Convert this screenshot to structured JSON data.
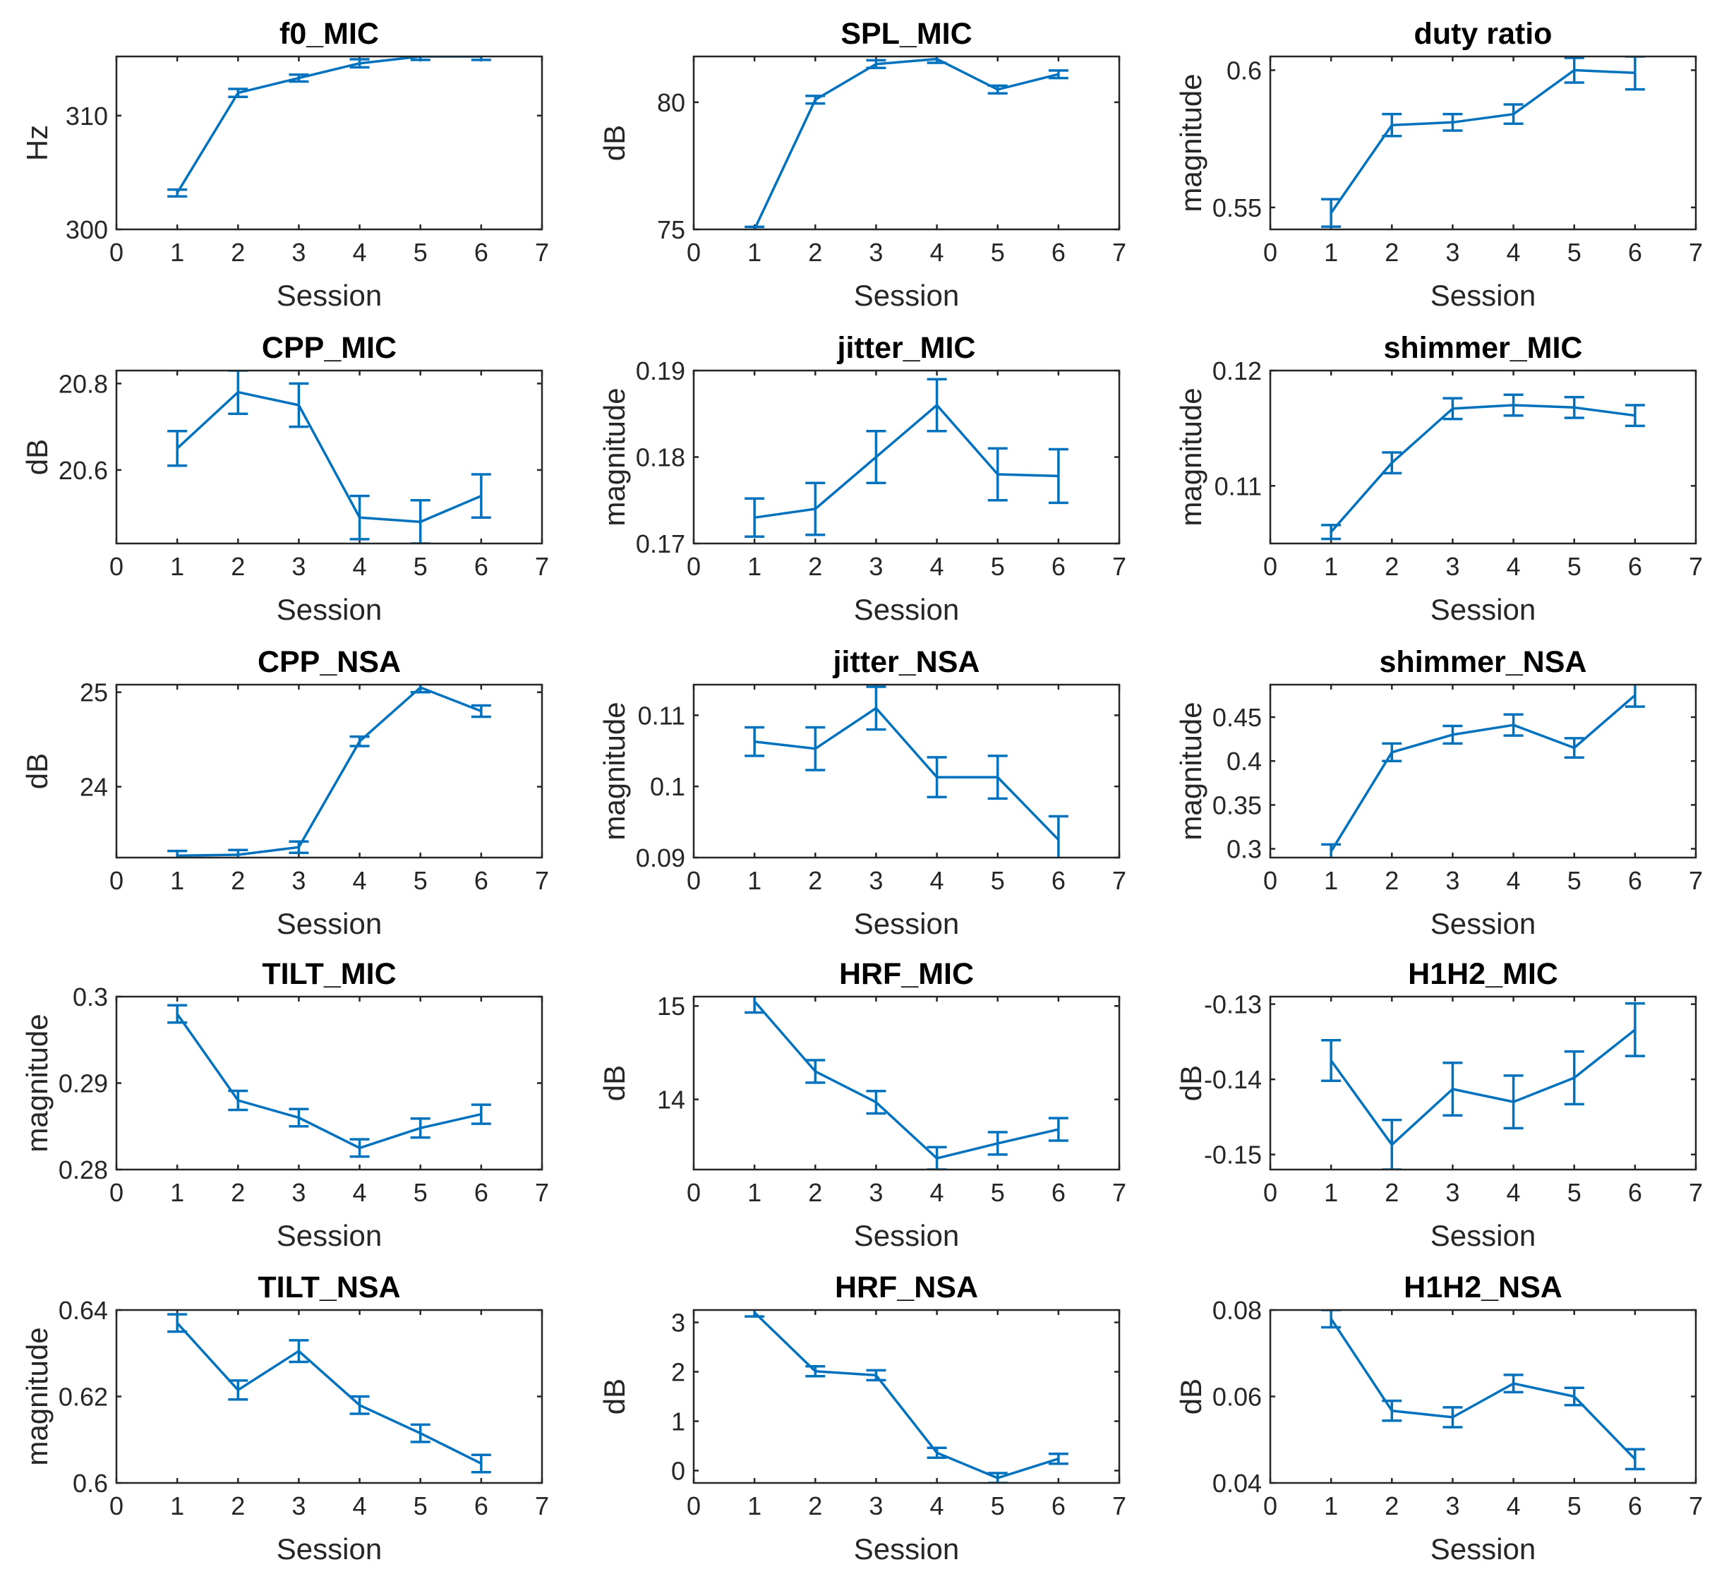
{
  "chart_data": [
    {
      "type": "line",
      "title": "f0_MIC",
      "xlabel": "Session",
      "ylabel": "Hz",
      "xlim": [
        0,
        7
      ],
      "xticks": [
        0,
        1,
        2,
        3,
        4,
        5,
        6,
        7
      ],
      "ylim": [
        300,
        315.2
      ],
      "yticks": [
        300,
        310
      ],
      "x": [
        1,
        2,
        3,
        4,
        5,
        6
      ],
      "values": [
        303.2,
        312,
        313.3,
        314.6,
        315.2,
        315.2
      ],
      "err": [
        0.3,
        0.35,
        0.3,
        0.35,
        0.3,
        0.3
      ],
      "color": "#0072BD"
    },
    {
      "type": "line",
      "title": "SPL_MIC",
      "xlabel": "Session",
      "ylabel": "dB",
      "xlim": [
        0,
        7
      ],
      "xticks": [
        0,
        1,
        2,
        3,
        4,
        5,
        6,
        7
      ],
      "ylim": [
        75,
        81.8
      ],
      "yticks": [
        75,
        80
      ],
      "x": [
        1,
        2,
        3,
        4,
        5,
        6
      ],
      "values": [
        75,
        80.1,
        81.5,
        81.7,
        80.5,
        81.1
      ],
      "err": [
        0.1,
        0.15,
        0.15,
        0.15,
        0.15,
        0.15
      ],
      "color": "#0072BD"
    },
    {
      "type": "line",
      "title": "duty ratio",
      "xlabel": "Session",
      "ylabel": "magnitude",
      "xlim": [
        0,
        7
      ],
      "xticks": [
        0,
        1,
        2,
        3,
        4,
        5,
        6,
        7
      ],
      "ylim": [
        0.542,
        0.605
      ],
      "yticks": [
        0.55,
        0.6
      ],
      "x": [
        1,
        2,
        3,
        4,
        5,
        6
      ],
      "values": [
        0.548,
        0.58,
        0.581,
        0.584,
        0.6,
        0.599
      ],
      "err": [
        0.005,
        0.004,
        0.003,
        0.0035,
        0.0045,
        0.006
      ],
      "color": "#0072BD"
    },
    {
      "type": "line",
      "title": "CPP_MIC",
      "xlabel": "Session",
      "ylabel": "dB",
      "xlim": [
        0,
        7
      ],
      "xticks": [
        0,
        1,
        2,
        3,
        4,
        5,
        6,
        7
      ],
      "ylim": [
        20.43,
        20.83
      ],
      "yticks": [
        20.6,
        20.8
      ],
      "x": [
        1,
        2,
        3,
        4,
        5,
        6
      ],
      "values": [
        20.65,
        20.78,
        20.75,
        20.49,
        20.48,
        20.54
      ],
      "err": [
        0.04,
        0.05,
        0.05,
        0.05,
        0.05,
        0.05
      ],
      "color": "#0072BD"
    },
    {
      "type": "line",
      "title": "jitter_MIC",
      "xlabel": "Session",
      "ylabel": "magnitude",
      "xlim": [
        0,
        7
      ],
      "xticks": [
        0,
        1,
        2,
        3,
        4,
        5,
        6,
        7
      ],
      "ylim": [
        0.17,
        0.19
      ],
      "yticks": [
        0.17,
        0.18,
        0.19
      ],
      "x": [
        1,
        2,
        3,
        4,
        5,
        6
      ],
      "values": [
        0.173,
        0.174,
        0.18,
        0.186,
        0.178,
        0.1778
      ],
      "err": [
        0.0022,
        0.003,
        0.003,
        0.003,
        0.003,
        0.0031
      ],
      "color": "#0072BD"
    },
    {
      "type": "line",
      "title": "shimmer_MIC",
      "xlabel": "Session",
      "ylabel": "magnitude",
      "xlim": [
        0,
        7
      ],
      "xticks": [
        0,
        1,
        2,
        3,
        4,
        5,
        6,
        7
      ],
      "ylim": [
        0.105,
        0.12
      ],
      "yticks": [
        0.11,
        0.12
      ],
      "x": [
        1,
        2,
        3,
        4,
        5,
        6
      ],
      "values": [
        0.106,
        0.112,
        0.1167,
        0.117,
        0.1168,
        0.1161
      ],
      "err": [
        0.0006,
        0.0009,
        0.0009,
        0.0009,
        0.0009,
        0.0009
      ],
      "color": "#0072BD"
    },
    {
      "type": "line",
      "title": "CPP_NSA",
      "xlabel": "Session",
      "ylabel": "dB",
      "xlim": [
        0,
        7
      ],
      "xticks": [
        0,
        1,
        2,
        3,
        4,
        5,
        6,
        7
      ],
      "ylim": [
        23.25,
        25.08
      ],
      "yticks": [
        24,
        25
      ],
      "x": [
        1,
        2,
        3,
        4,
        5,
        6
      ],
      "values": [
        23.27,
        23.28,
        23.36,
        24.48,
        25.05,
        24.8
      ],
      "err": [
        0.05,
        0.05,
        0.06,
        0.05,
        0.05,
        0.06
      ],
      "color": "#0072BD"
    },
    {
      "type": "line",
      "title": "jitter_NSA",
      "xlabel": "Session",
      "ylabel": "magnitude",
      "xlim": [
        0,
        7
      ],
      "xticks": [
        0,
        1,
        2,
        3,
        4,
        5,
        6,
        7
      ],
      "ylim": [
        0.09,
        0.1143
      ],
      "yticks": [
        0.09,
        0.1,
        0.11
      ],
      "x": [
        1,
        2,
        3,
        4,
        5,
        6
      ],
      "values": [
        0.1063,
        0.1053,
        0.111,
        0.1013,
        0.1013,
        0.0925
      ],
      "err": [
        0.002,
        0.003,
        0.003,
        0.0028,
        0.003,
        0.0033
      ],
      "color": "#0072BD"
    },
    {
      "type": "line",
      "title": "shimmer_NSA",
      "xlabel": "Session",
      "ylabel": "magnitude",
      "xlim": [
        0,
        7
      ],
      "xticks": [
        0,
        1,
        2,
        3,
        4,
        5,
        6,
        7
      ],
      "ylim": [
        0.29,
        0.487
      ],
      "yticks": [
        0.3,
        0.35,
        0.4,
        0.45
      ],
      "x": [
        1,
        2,
        3,
        4,
        5,
        6
      ],
      "values": [
        0.297,
        0.41,
        0.43,
        0.441,
        0.415,
        0.475
      ],
      "err": [
        0.008,
        0.01,
        0.01,
        0.012,
        0.011,
        0.013
      ],
      "color": "#0072BD"
    },
    {
      "type": "line",
      "title": "TILT_MIC",
      "xlabel": "Session",
      "ylabel": "magnitude",
      "xlim": [
        0,
        7
      ],
      "xticks": [
        0,
        1,
        2,
        3,
        4,
        5,
        6,
        7
      ],
      "ylim": [
        0.28,
        0.3
      ],
      "yticks": [
        0.28,
        0.29,
        0.3
      ],
      "x": [
        1,
        2,
        3,
        4,
        5,
        6
      ],
      "values": [
        0.298,
        0.288,
        0.286,
        0.2825,
        0.2848,
        0.2864
      ],
      "err": [
        0.001,
        0.0011,
        0.001,
        0.001,
        0.0011,
        0.0011
      ],
      "color": "#0072BD"
    },
    {
      "type": "line",
      "title": "HRF_MIC",
      "xlabel": "Session",
      "ylabel": "dB",
      "xlim": [
        0,
        7
      ],
      "xticks": [
        0,
        1,
        2,
        3,
        4,
        5,
        6,
        7
      ],
      "ylim": [
        13.25,
        15.1
      ],
      "yticks": [
        14,
        15
      ],
      "x": [
        1,
        2,
        3,
        4,
        5,
        6
      ],
      "values": [
        15.05,
        14.3,
        13.97,
        13.37,
        13.53,
        13.68
      ],
      "err": [
        0.12,
        0.12,
        0.12,
        0.12,
        0.12,
        0.12
      ],
      "color": "#0072BD"
    },
    {
      "type": "line",
      "title": "H1H2_MIC",
      "xlabel": "Session",
      "ylabel": "dB",
      "xlim": [
        0,
        7
      ],
      "xticks": [
        0,
        1,
        2,
        3,
        4,
        5,
        6,
        7
      ],
      "ylim": [
        -0.152,
        -0.129
      ],
      "yticks": [
        -0.15,
        -0.14,
        -0.13
      ],
      "x": [
        1,
        2,
        3,
        4,
        5,
        6
      ],
      "values": [
        -0.1375,
        -0.1487,
        -0.1413,
        -0.143,
        -0.1398,
        -0.1334
      ],
      "err": [
        0.0027,
        0.0033,
        0.0035,
        0.0035,
        0.0035,
        0.0035
      ],
      "color": "#0072BD"
    },
    {
      "type": "line",
      "title": "TILT_NSA",
      "xlabel": "Session",
      "ylabel": "magnitude",
      "xlim": [
        0,
        7
      ],
      "xticks": [
        0,
        1,
        2,
        3,
        4,
        5,
        6,
        7
      ],
      "ylim": [
        0.6,
        0.64
      ],
      "yticks": [
        0.6,
        0.62,
        0.64
      ],
      "x": [
        1,
        2,
        3,
        4,
        5,
        6
      ],
      "values": [
        0.637,
        0.6215,
        0.6305,
        0.618,
        0.6115,
        0.6045
      ],
      "err": [
        0.002,
        0.0022,
        0.0025,
        0.002,
        0.002,
        0.002
      ],
      "color": "#0072BD"
    },
    {
      "type": "line",
      "title": "HRF_NSA",
      "xlabel": "Session",
      "ylabel": "dB",
      "xlim": [
        0,
        7
      ],
      "xticks": [
        0,
        1,
        2,
        3,
        4,
        5,
        6,
        7
      ],
      "ylim": [
        -0.25,
        3.25
      ],
      "yticks": [
        0,
        1,
        2,
        3
      ],
      "x": [
        1,
        2,
        3,
        4,
        5,
        6
      ],
      "values": [
        3.2,
        2.01,
        1.93,
        0.36,
        -0.15,
        0.24
      ],
      "err": [
        0.08,
        0.1,
        0.1,
        0.1,
        0.1,
        0.1
      ],
      "color": "#0072BD"
    },
    {
      "type": "line",
      "title": "H1H2_NSA",
      "xlabel": "Session",
      "ylabel": "dB",
      "xlim": [
        0,
        7
      ],
      "xticks": [
        0,
        1,
        2,
        3,
        4,
        5,
        6,
        7
      ],
      "ylim": [
        0.04,
        0.08
      ],
      "yticks": [
        0.04,
        0.06,
        0.08
      ],
      "x": [
        1,
        2,
        3,
        4,
        5,
        6
      ],
      "values": [
        0.078,
        0.0567,
        0.0552,
        0.063,
        0.06,
        0.0455
      ],
      "err": [
        0.002,
        0.0023,
        0.0023,
        0.002,
        0.002,
        0.0023
      ],
      "color": "#0072BD"
    }
  ]
}
